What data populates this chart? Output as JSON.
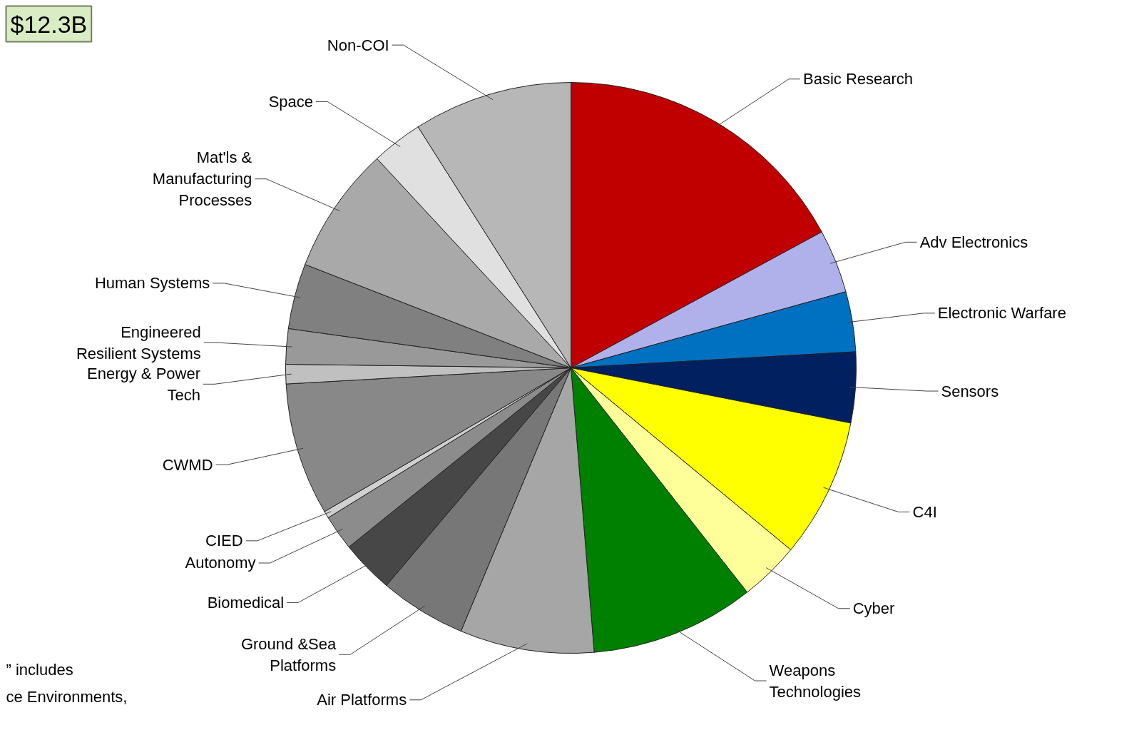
{
  "chart_data": {
    "type": "pie",
    "categories": [
      "Basic Research",
      "Adv Electronics",
      "Electronic Warfare",
      "Sensors",
      "C4I",
      "Cyber",
      "Weapons\nTechnologies",
      "Air Platforms",
      "Ground &Sea\nPlatforms",
      "Biomedical",
      "Autonomy",
      "CIED",
      "CWMD",
      "Energy & Power\nTech",
      "Engineered\nResilient Systems",
      "Human Systems",
      "Mat'ls &\nManufacturing\nProcesses",
      "Space",
      "Non-COI"
    ],
    "values": [
      17.1,
      3.6,
      3.4,
      4.0,
      7.9,
      3.4,
      9.3,
      7.6,
      4.9,
      3.0,
      2.0,
      0.4,
      7.5,
      1.1,
      2.0,
      3.7,
      7.2,
      2.9,
      9.0
    ],
    "colors": [
      "#c00000",
      "#b0b0ea",
      "#0070c0",
      "#002060",
      "#ffff00",
      "#ffff99",
      "#008000",
      "#a6a6a6",
      "#777777",
      "#474747",
      "#8c8c8c",
      "#d0d0d0",
      "#888888",
      "#c0c0c0",
      "#999999",
      "#808080",
      "#a9a9a9",
      "#e0e0e0",
      "#b7b7b7"
    ],
    "annotations": [
      "$12.3B",
      "” includes",
      "ce Environments,"
    ]
  }
}
